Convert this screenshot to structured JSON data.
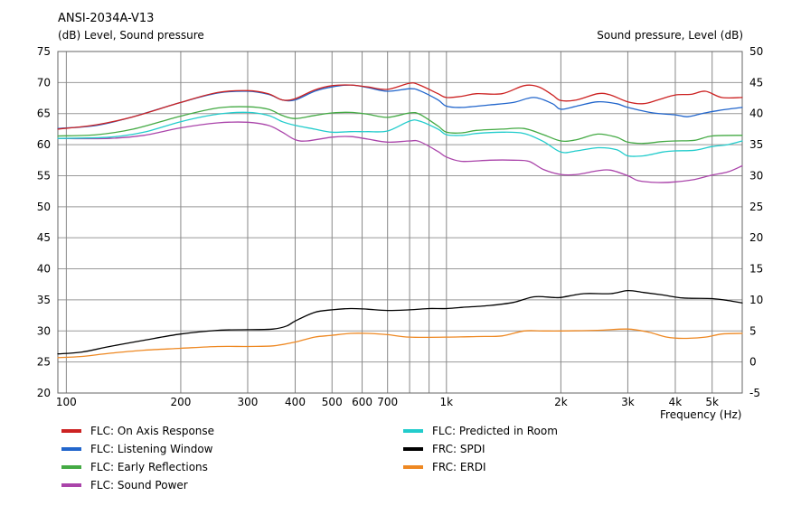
{
  "chart_data": {
    "type": "line",
    "title": "ANSI-2034A-V13",
    "ylabel_left": "(dB)  Level, Sound pressure",
    "ylabel_right": "Sound pressure, Level  (dB)",
    "xlabel": "Frequency  (Hz)",
    "xscale": "log",
    "xlim": [
      95,
      6000
    ],
    "ylim_left": [
      20,
      75
    ],
    "ylim_right": [
      -5,
      50
    ],
    "grid": true,
    "x_ticks": [
      {
        "value": 100,
        "label": "100"
      },
      {
        "value": 200,
        "label": "200"
      },
      {
        "value": 300,
        "label": "300"
      },
      {
        "value": 400,
        "label": "400"
      },
      {
        "value": 500,
        "label": "500"
      },
      {
        "value": 600,
        "label": "600"
      },
      {
        "value": 700,
        "label": "700"
      },
      {
        "value": 1000,
        "label": "1k"
      },
      {
        "value": 2000,
        "label": "2k"
      },
      {
        "value": 3000,
        "label": "3k"
      },
      {
        "value": 4000,
        "label": "4k"
      },
      {
        "value": 5000,
        "label": "5k"
      }
    ],
    "x_minor_grid": [
      800,
      900
    ],
    "y_ticks_left": [
      20,
      25,
      30,
      35,
      40,
      45,
      50,
      55,
      60,
      65,
      70,
      75
    ],
    "y_ticks_right": [
      -5,
      0,
      5,
      10,
      15,
      20,
      25,
      30,
      35,
      40,
      45,
      50
    ],
    "series": [
      {
        "name": "FLC: On Axis Response",
        "color": "#cc2222",
        "axis": "left",
        "points": [
          [
            95,
            62.5
          ],
          [
            120,
            63.2
          ],
          [
            150,
            64.5
          ],
          [
            200,
            66.8
          ],
          [
            250,
            68.4
          ],
          [
            300,
            68.7
          ],
          [
            340,
            68.2
          ],
          [
            370,
            67.2
          ],
          [
            400,
            67.4
          ],
          [
            450,
            68.8
          ],
          [
            500,
            69.5
          ],
          [
            560,
            69.6
          ],
          [
            620,
            69.3
          ],
          [
            700,
            68.9
          ],
          [
            800,
            69.9
          ],
          [
            850,
            69.6
          ],
          [
            950,
            68.2
          ],
          [
            1000,
            67.6
          ],
          [
            1100,
            67.8
          ],
          [
            1200,
            68.2
          ],
          [
            1400,
            68.2
          ],
          [
            1600,
            69.5
          ],
          [
            1750,
            69.3
          ],
          [
            1900,
            68.0
          ],
          [
            2000,
            67.1
          ],
          [
            2200,
            67.2
          ],
          [
            2500,
            68.2
          ],
          [
            2700,
            68.0
          ],
          [
            3000,
            66.9
          ],
          [
            3300,
            66.6
          ],
          [
            3600,
            67.2
          ],
          [
            4000,
            68.0
          ],
          [
            4400,
            68.1
          ],
          [
            4800,
            68.6
          ],
          [
            5300,
            67.6
          ],
          [
            6000,
            67.6
          ]
        ]
      },
      {
        "name": "FLC: Listening Window",
        "color": "#2266cc",
        "axis": "left",
        "points": [
          [
            95,
            62.6
          ],
          [
            120,
            63.1
          ],
          [
            150,
            64.5
          ],
          [
            200,
            66.8
          ],
          [
            250,
            68.3
          ],
          [
            300,
            68.6
          ],
          [
            340,
            68.1
          ],
          [
            370,
            67.2
          ],
          [
            400,
            67.2
          ],
          [
            450,
            68.6
          ],
          [
            500,
            69.3
          ],
          [
            560,
            69.6
          ],
          [
            620,
            69.2
          ],
          [
            700,
            68.6
          ],
          [
            800,
            69.0
          ],
          [
            850,
            68.7
          ],
          [
            950,
            67.2
          ],
          [
            1000,
            66.2
          ],
          [
            1100,
            66.0
          ],
          [
            1300,
            66.4
          ],
          [
            1500,
            66.8
          ],
          [
            1700,
            67.6
          ],
          [
            1900,
            66.6
          ],
          [
            2000,
            65.7
          ],
          [
            2200,
            66.2
          ],
          [
            2500,
            66.9
          ],
          [
            2800,
            66.6
          ],
          [
            3000,
            66.0
          ],
          [
            3500,
            65.1
          ],
          [
            4000,
            64.8
          ],
          [
            4300,
            64.5
          ],
          [
            4700,
            65.0
          ],
          [
            5200,
            65.5
          ],
          [
            6000,
            66.0
          ]
        ]
      },
      {
        "name": "FLC: Early Reflections",
        "color": "#44aa44",
        "axis": "left",
        "points": [
          [
            95,
            61.4
          ],
          [
            120,
            61.6
          ],
          [
            150,
            62.5
          ],
          [
            200,
            64.6
          ],
          [
            250,
            65.9
          ],
          [
            300,
            66.1
          ],
          [
            340,
            65.7
          ],
          [
            370,
            64.7
          ],
          [
            400,
            64.2
          ],
          [
            450,
            64.7
          ],
          [
            500,
            65.1
          ],
          [
            560,
            65.2
          ],
          [
            620,
            64.9
          ],
          [
            700,
            64.4
          ],
          [
            800,
            65.1
          ],
          [
            850,
            64.9
          ],
          [
            950,
            63.0
          ],
          [
            1000,
            62.0
          ],
          [
            1100,
            61.9
          ],
          [
            1200,
            62.3
          ],
          [
            1400,
            62.5
          ],
          [
            1600,
            62.6
          ],
          [
            1800,
            61.6
          ],
          [
            2000,
            60.6
          ],
          [
            2200,
            60.8
          ],
          [
            2500,
            61.7
          ],
          [
            2800,
            61.2
          ],
          [
            3000,
            60.4
          ],
          [
            3300,
            60.2
          ],
          [
            3700,
            60.5
          ],
          [
            4000,
            60.6
          ],
          [
            4500,
            60.7
          ],
          [
            5000,
            61.4
          ],
          [
            6000,
            61.5
          ]
        ]
      },
      {
        "name": "FLC: Sound Power",
        "color": "#aa44aa",
        "axis": "left",
        "points": [
          [
            95,
            61.0
          ],
          [
            130,
            61.0
          ],
          [
            160,
            61.5
          ],
          [
            200,
            62.7
          ],
          [
            250,
            63.5
          ],
          [
            300,
            63.6
          ],
          [
            340,
            63.1
          ],
          [
            370,
            62.0
          ],
          [
            400,
            60.8
          ],
          [
            430,
            60.6
          ],
          [
            500,
            61.2
          ],
          [
            560,
            61.3
          ],
          [
            620,
            60.9
          ],
          [
            700,
            60.4
          ],
          [
            800,
            60.6
          ],
          [
            850,
            60.5
          ],
          [
            950,
            58.9
          ],
          [
            1000,
            58.0
          ],
          [
            1100,
            57.3
          ],
          [
            1300,
            57.5
          ],
          [
            1500,
            57.5
          ],
          [
            1650,
            57.3
          ],
          [
            1800,
            56.0
          ],
          [
            2000,
            55.2
          ],
          [
            2200,
            55.2
          ],
          [
            2500,
            55.8
          ],
          [
            2700,
            55.9
          ],
          [
            3000,
            55.0
          ],
          [
            3200,
            54.2
          ],
          [
            3600,
            53.9
          ],
          [
            4000,
            54.0
          ],
          [
            4500,
            54.4
          ],
          [
            5000,
            55.1
          ],
          [
            5500,
            55.6
          ],
          [
            6000,
            56.6
          ]
        ]
      },
      {
        "name": "FLC: Predicted in Room",
        "color": "#22cccc",
        "axis": "left",
        "points": [
          [
            95,
            61.0
          ],
          [
            130,
            61.2
          ],
          [
            160,
            62.0
          ],
          [
            200,
            63.7
          ],
          [
            250,
            64.9
          ],
          [
            300,
            65.2
          ],
          [
            340,
            64.7
          ],
          [
            370,
            63.7
          ],
          [
            400,
            63.1
          ],
          [
            450,
            62.5
          ],
          [
            500,
            62.0
          ],
          [
            560,
            62.1
          ],
          [
            620,
            62.1
          ],
          [
            700,
            62.2
          ],
          [
            800,
            63.8
          ],
          [
            850,
            63.8
          ],
          [
            950,
            62.5
          ],
          [
            1000,
            61.6
          ],
          [
            1100,
            61.5
          ],
          [
            1200,
            61.8
          ],
          [
            1400,
            62.0
          ],
          [
            1600,
            61.8
          ],
          [
            1800,
            60.5
          ],
          [
            2000,
            58.8
          ],
          [
            2200,
            59.0
          ],
          [
            2500,
            59.5
          ],
          [
            2800,
            59.2
          ],
          [
            3000,
            58.2
          ],
          [
            3300,
            58.2
          ],
          [
            3700,
            58.8
          ],
          [
            4000,
            59.0
          ],
          [
            4500,
            59.1
          ],
          [
            5000,
            59.7
          ],
          [
            5500,
            60.0
          ],
          [
            6000,
            60.6
          ]
        ]
      },
      {
        "name": "FRC: SPDI",
        "color": "#000000",
        "axis": "right",
        "points": [
          [
            95,
            1.3
          ],
          [
            110,
            1.6
          ],
          [
            130,
            2.5
          ],
          [
            160,
            3.5
          ],
          [
            200,
            4.5
          ],
          [
            250,
            5.1
          ],
          [
            300,
            5.2
          ],
          [
            350,
            5.3
          ],
          [
            380,
            5.8
          ],
          [
            400,
            6.6
          ],
          [
            450,
            8.0
          ],
          [
            500,
            8.4
          ],
          [
            560,
            8.6
          ],
          [
            620,
            8.5
          ],
          [
            700,
            8.3
          ],
          [
            800,
            8.4
          ],
          [
            900,
            8.6
          ],
          [
            1000,
            8.6
          ],
          [
            1100,
            8.8
          ],
          [
            1300,
            9.1
          ],
          [
            1500,
            9.6
          ],
          [
            1700,
            10.5
          ],
          [
            1900,
            10.4
          ],
          [
            2000,
            10.4
          ],
          [
            2300,
            11.0
          ],
          [
            2700,
            11.0
          ],
          [
            3000,
            11.5
          ],
          [
            3300,
            11.2
          ],
          [
            3700,
            10.8
          ],
          [
            4200,
            10.3
          ],
          [
            5000,
            10.2
          ],
          [
            5500,
            9.9
          ],
          [
            6000,
            9.5
          ]
        ]
      },
      {
        "name": "FRC: ERDI",
        "color": "#ee8822",
        "axis": "right",
        "points": [
          [
            95,
            0.7
          ],
          [
            110,
            0.9
          ],
          [
            130,
            1.4
          ],
          [
            160,
            1.9
          ],
          [
            200,
            2.2
          ],
          [
            250,
            2.5
          ],
          [
            300,
            2.5
          ],
          [
            350,
            2.6
          ],
          [
            400,
            3.2
          ],
          [
            450,
            4.0
          ],
          [
            500,
            4.3
          ],
          [
            560,
            4.6
          ],
          [
            620,
            4.6
          ],
          [
            700,
            4.4
          ],
          [
            800,
            4.0
          ],
          [
            1000,
            4.0
          ],
          [
            1200,
            4.1
          ],
          [
            1400,
            4.2
          ],
          [
            1600,
            5.0
          ],
          [
            1800,
            5.0
          ],
          [
            2000,
            5.0
          ],
          [
            2500,
            5.1
          ],
          [
            3000,
            5.3
          ],
          [
            3400,
            4.8
          ],
          [
            3800,
            4.0
          ],
          [
            4200,
            3.8
          ],
          [
            4800,
            4.0
          ],
          [
            5300,
            4.5
          ],
          [
            6000,
            4.6
          ]
        ]
      }
    ]
  },
  "legend": [
    {
      "label": "FLC: On Axis Response",
      "color": "#cc2222"
    },
    {
      "label": "FLC: Listening Window",
      "color": "#2266cc"
    },
    {
      "label": "FLC: Early Reflections",
      "color": "#44aa44"
    },
    {
      "label": "FLC: Sound Power",
      "color": "#aa44aa"
    },
    {
      "label": "FLC: Predicted in Room",
      "color": "#22cccc"
    },
    {
      "label": "FRC: SPDI",
      "color": "#000000"
    },
    {
      "label": "FRC: ERDI",
      "color": "#ee8822"
    }
  ]
}
